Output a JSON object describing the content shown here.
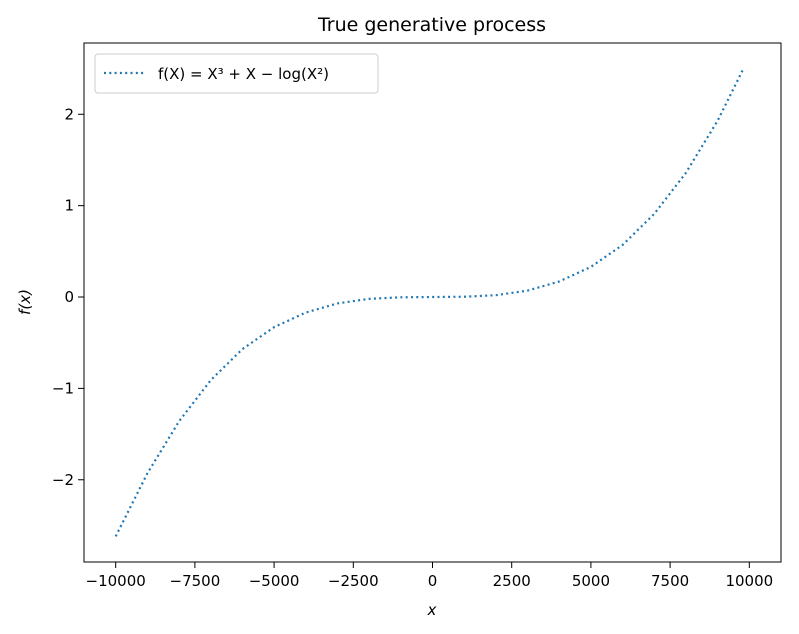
{
  "chart_data": {
    "type": "line",
    "title": "True generative process",
    "xlabel": "x",
    "ylabel": "f(x)",
    "xlim": [
      -11000,
      11000
    ],
    "ylim": [
      -2.9,
      2.78
    ],
    "xticks": [
      -10000,
      -7500,
      -5000,
      -2500,
      0,
      2500,
      5000,
      7500,
      10000
    ],
    "xtick_labels": [
      "−10000",
      "−7500",
      "−5000",
      "−2500",
      "0",
      "2500",
      "5000",
      "7500",
      "10000"
    ],
    "yticks": [
      -2,
      -1,
      0,
      1,
      2
    ],
    "ytick_labels": [
      "−2",
      "−1",
      "0",
      "1",
      "2"
    ],
    "grid": false,
    "legend_position": "top-left",
    "series": [
      {
        "name": "f(X) = X³ + X − log(X²)",
        "color": "#1f77b4",
        "line_style": "dotted",
        "x": [
          -10000,
          -9000,
          -8000,
          -7000,
          -6000,
          -5000,
          -4000,
          -3000,
          -2000,
          -1000,
          0,
          1000,
          2000,
          3000,
          4000,
          5000,
          6000,
          7000,
          8000,
          9000,
          9800
        ],
        "y": [
          -2.62,
          -1.93,
          -1.36,
          -0.91,
          -0.57,
          -0.33,
          -0.17,
          -0.07,
          -0.02,
          -0.003,
          0.0,
          0.003,
          0.02,
          0.07,
          0.17,
          0.33,
          0.57,
          0.91,
          1.36,
          1.93,
          2.49
        ]
      }
    ]
  }
}
